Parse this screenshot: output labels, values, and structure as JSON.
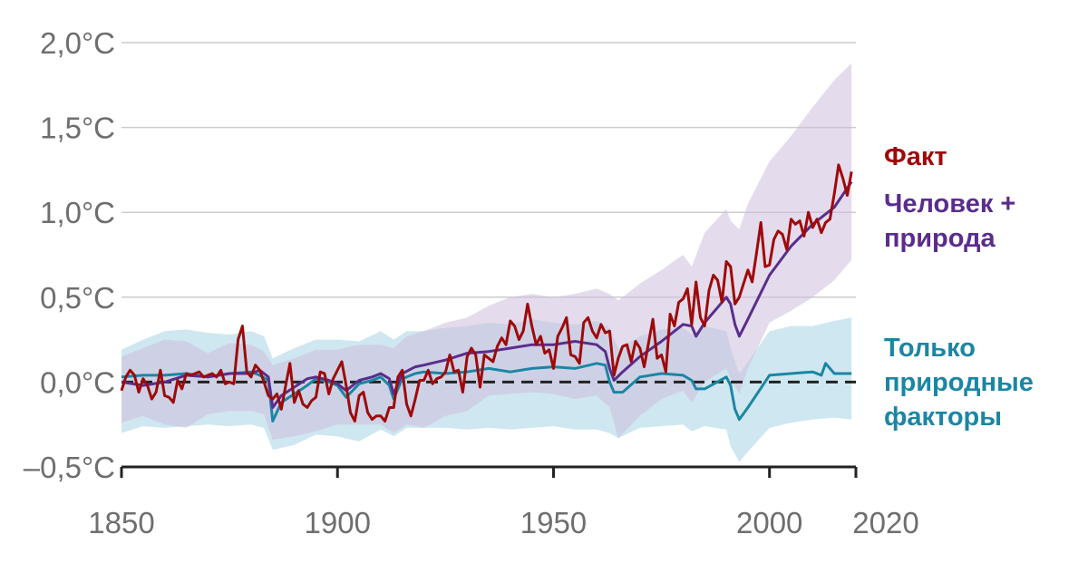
{
  "chart_data": {
    "type": "line",
    "xlim": [
      1850,
      2020
    ],
    "ylim": [
      -0.5,
      2.0
    ],
    "y_ticks": [
      {
        "value": 2.0,
        "label": "2,0°C"
      },
      {
        "value": 1.5,
        "label": "1,5°C"
      },
      {
        "value": 1.0,
        "label": "1,0°C"
      },
      {
        "value": 0.5,
        "label": "0,5°C"
      },
      {
        "value": 0.0,
        "label": "0,0°C"
      },
      {
        "value": -0.5,
        "label": "–0,5°C"
      }
    ],
    "x_ticks": [
      {
        "value": 1850,
        "label": "1850"
      },
      {
        "value": 1900,
        "label": "1900"
      },
      {
        "value": 1950,
        "label": "1950"
      },
      {
        "value": 2000,
        "label": "2000"
      },
      {
        "value": 2020,
        "label": "2020"
      }
    ],
    "grid": true,
    "zero_line": "dashed",
    "legend": [
      {
        "key": "observed",
        "lines": [
          "Факт"
        ],
        "color": "#9e0a0a"
      },
      {
        "key": "human_natural",
        "lines": [
          "Человек +",
          "природа"
        ],
        "color": "#5a2d8c"
      },
      {
        "key": "natural_only",
        "lines": [
          "Только",
          "природные",
          "факторы"
        ],
        "color": "#1b86a4"
      }
    ],
    "bands": [
      {
        "key": "natural_only",
        "color": "#a8d4e3",
        "x": [
          1850,
          1855,
          1860,
          1865,
          1870,
          1875,
          1880,
          1883,
          1885,
          1890,
          1895,
          1900,
          1905,
          1910,
          1913,
          1916,
          1920,
          1925,
          1930,
          1935,
          1940,
          1945,
          1950,
          1955,
          1960,
          1963,
          1965,
          1970,
          1975,
          1980,
          1982,
          1985,
          1990,
          1991,
          1993,
          1995,
          2000,
          2005,
          2010,
          2015,
          2019
        ],
        "lower": [
          -0.3,
          -0.26,
          -0.27,
          -0.26,
          -0.25,
          -0.26,
          -0.25,
          -0.27,
          -0.4,
          -0.37,
          -0.31,
          -0.32,
          -0.35,
          -0.28,
          -0.32,
          -0.27,
          -0.27,
          -0.27,
          -0.28,
          -0.27,
          -0.28,
          -0.27,
          -0.26,
          -0.28,
          -0.28,
          -0.3,
          -0.33,
          -0.27,
          -0.26,
          -0.25,
          -0.29,
          -0.26,
          -0.28,
          -0.38,
          -0.47,
          -0.41,
          -0.27,
          -0.24,
          -0.22,
          -0.21,
          -0.22
        ],
        "upper": [
          0.19,
          0.25,
          0.3,
          0.31,
          0.29,
          0.28,
          0.3,
          0.27,
          0.14,
          0.2,
          0.25,
          0.25,
          0.24,
          0.3,
          0.25,
          0.3,
          0.3,
          0.32,
          0.33,
          0.35,
          0.34,
          0.37,
          0.35,
          0.34,
          0.36,
          0.32,
          0.2,
          0.27,
          0.31,
          0.32,
          0.28,
          0.33,
          0.3,
          0.2,
          0.05,
          0.12,
          0.3,
          0.33,
          0.33,
          0.36,
          0.38
        ]
      },
      {
        "key": "human_natural",
        "color": "#cdbfdc",
        "x": [
          1850,
          1855,
          1860,
          1865,
          1870,
          1875,
          1880,
          1883,
          1885,
          1890,
          1895,
          1900,
          1905,
          1910,
          1913,
          1916,
          1920,
          1925,
          1930,
          1935,
          1940,
          1945,
          1950,
          1955,
          1960,
          1963,
          1965,
          1970,
          1975,
          1980,
          1982,
          1985,
          1990,
          1991,
          1993,
          1995,
          2000,
          2005,
          2010,
          2015,
          2019
        ],
        "lower": [
          -0.24,
          -0.2,
          -0.25,
          -0.27,
          -0.19,
          -0.17,
          -0.17,
          -0.19,
          -0.34,
          -0.32,
          -0.29,
          -0.25,
          -0.25,
          -0.25,
          -0.3,
          -0.25,
          -0.27,
          -0.2,
          -0.17,
          -0.08,
          -0.07,
          -0.06,
          -0.07,
          -0.1,
          -0.08,
          -0.15,
          -0.33,
          -0.2,
          -0.1,
          -0.05,
          -0.12,
          0.0,
          0.08,
          0.02,
          -0.07,
          0.08,
          0.35,
          0.42,
          0.5,
          0.6,
          0.72
        ],
        "upper": [
          0.15,
          0.2,
          0.25,
          0.24,
          0.17,
          0.23,
          0.22,
          0.18,
          0.1,
          0.14,
          0.19,
          0.19,
          0.22,
          0.22,
          0.2,
          0.27,
          0.3,
          0.35,
          0.38,
          0.45,
          0.5,
          0.52,
          0.5,
          0.52,
          0.55,
          0.52,
          0.48,
          0.58,
          0.66,
          0.75,
          0.68,
          0.88,
          1.02,
          0.95,
          0.9,
          1.05,
          1.3,
          1.45,
          1.62,
          1.78,
          1.88
        ]
      }
    ],
    "series": [
      {
        "key": "natural_only",
        "color": "#1b86a4",
        "x": [
          1850,
          1855,
          1860,
          1865,
          1870,
          1875,
          1880,
          1882,
          1884,
          1885,
          1887,
          1890,
          1893,
          1895,
          1898,
          1900,
          1902,
          1905,
          1908,
          1910,
          1912,
          1913,
          1915,
          1918,
          1920,
          1925,
          1930,
          1935,
          1940,
          1945,
          1950,
          1955,
          1960,
          1962,
          1963,
          1964,
          1966,
          1970,
          1975,
          1980,
          1982,
          1983,
          1985,
          1990,
          1991,
          1992,
          1993,
          1995,
          2000,
          2005,
          2010,
          2012,
          2013,
          2015,
          2019
        ],
        "values": [
          0.03,
          0.04,
          0.04,
          0.05,
          0.03,
          0.05,
          0.06,
          0.04,
          0.01,
          -0.23,
          -0.12,
          -0.07,
          -0.02,
          0.02,
          0.0,
          -0.02,
          -0.09,
          -0.01,
          0.01,
          0.03,
          -0.02,
          -0.1,
          0.02,
          0.05,
          0.06,
          0.05,
          0.06,
          0.08,
          0.06,
          0.08,
          0.09,
          0.08,
          0.11,
          0.1,
          0.0,
          -0.06,
          -0.06,
          0.03,
          0.05,
          0.04,
          0.01,
          -0.04,
          -0.04,
          0.03,
          -0.02,
          -0.16,
          -0.22,
          -0.15,
          0.04,
          0.05,
          0.06,
          0.04,
          0.11,
          0.05,
          0.05
        ]
      },
      {
        "key": "human_natural",
        "color": "#5a2d8c",
        "x": [
          1850,
          1855,
          1860,
          1865,
          1870,
          1875,
          1880,
          1882,
          1884,
          1885,
          1887,
          1890,
          1893,
          1895,
          1898,
          1900,
          1902,
          1905,
          1908,
          1910,
          1912,
          1913,
          1915,
          1918,
          1920,
          1925,
          1930,
          1935,
          1940,
          1945,
          1950,
          1955,
          1960,
          1962,
          1963,
          1964,
          1966,
          1970,
          1975,
          1980,
          1982,
          1983,
          1985,
          1990,
          1991,
          1992,
          1993,
          1995,
          2000,
          2005,
          2010,
          2015,
          2019
        ],
        "values": [
          0.0,
          -0.02,
          0.0,
          0.04,
          0.03,
          0.05,
          0.05,
          0.07,
          0.03,
          -0.15,
          -0.08,
          -0.03,
          0.02,
          0.03,
          0.01,
          -0.01,
          -0.05,
          0.01,
          0.03,
          0.05,
          0.02,
          -0.07,
          0.05,
          0.09,
          0.1,
          0.13,
          0.17,
          0.18,
          0.2,
          0.22,
          0.22,
          0.24,
          0.22,
          0.18,
          0.08,
          0.01,
          0.06,
          0.15,
          0.24,
          0.34,
          0.33,
          0.27,
          0.35,
          0.5,
          0.46,
          0.34,
          0.27,
          0.37,
          0.63,
          0.8,
          0.93,
          1.03,
          1.18
        ]
      },
      {
        "key": "observed",
        "color": "#9e0a0a",
        "x": [
          1850,
          1851,
          1852,
          1853,
          1854,
          1855,
          1856,
          1857,
          1858,
          1859,
          1860,
          1861,
          1862,
          1863,
          1864,
          1865,
          1866,
          1867,
          1868,
          1869,
          1870,
          1871,
          1872,
          1873,
          1874,
          1875,
          1876,
          1877,
          1878,
          1879,
          1880,
          1881,
          1882,
          1883,
          1884,
          1885,
          1886,
          1887,
          1888,
          1889,
          1890,
          1891,
          1892,
          1893,
          1894,
          1895,
          1896,
          1897,
          1898,
          1899,
          1900,
          1901,
          1902,
          1903,
          1904,
          1905,
          1906,
          1907,
          1908,
          1909,
          1910,
          1911,
          1912,
          1913,
          1914,
          1915,
          1916,
          1917,
          1918,
          1919,
          1920,
          1921,
          1922,
          1923,
          1924,
          1925,
          1926,
          1927,
          1928,
          1929,
          1930,
          1931,
          1932,
          1933,
          1934,
          1935,
          1936,
          1937,
          1938,
          1939,
          1940,
          1941,
          1942,
          1943,
          1944,
          1945,
          1946,
          1947,
          1948,
          1949,
          1950,
          1951,
          1952,
          1953,
          1954,
          1955,
          1956,
          1957,
          1958,
          1959,
          1960,
          1961,
          1962,
          1963,
          1964,
          1965,
          1966,
          1967,
          1968,
          1969,
          1970,
          1971,
          1972,
          1973,
          1974,
          1975,
          1976,
          1977,
          1978,
          1979,
          1980,
          1981,
          1982,
          1983,
          1984,
          1985,
          1986,
          1987,
          1988,
          1989,
          1990,
          1991,
          1992,
          1993,
          1994,
          1995,
          1996,
          1997,
          1998,
          1999,
          2000,
          2001,
          2002,
          2003,
          2004,
          2005,
          2006,
          2007,
          2008,
          2009,
          2010,
          2011,
          2012,
          2013,
          2014,
          2015,
          2016,
          2017,
          2018,
          2019
        ],
        "values": [
          -0.05,
          0.03,
          0.07,
          0.04,
          -0.06,
          0.02,
          -0.02,
          -0.1,
          -0.06,
          0.07,
          -0.08,
          -0.09,
          -0.12,
          0.01,
          -0.04,
          0.05,
          0.04,
          0.05,
          0.06,
          0.03,
          0.04,
          0.05,
          0.03,
          0.07,
          -0.01,
          0.0,
          -0.01,
          0.25,
          0.33,
          0.06,
          0.03,
          0.1,
          0.07,
          0.0,
          -0.08,
          -0.1,
          -0.07,
          -0.16,
          -0.02,
          0.11,
          -0.12,
          -0.05,
          -0.13,
          -0.15,
          -0.11,
          -0.09,
          0.06,
          0.05,
          -0.07,
          0.02,
          0.07,
          0.12,
          -0.02,
          -0.18,
          -0.23,
          -0.08,
          -0.06,
          -0.18,
          -0.22,
          -0.2,
          -0.2,
          -0.23,
          -0.15,
          -0.15,
          0.03,
          0.07,
          -0.13,
          -0.2,
          -0.1,
          0.01,
          0.01,
          0.07,
          -0.01,
          0.02,
          0.03,
          0.06,
          0.16,
          0.06,
          0.07,
          -0.06,
          0.15,
          0.2,
          0.16,
          -0.03,
          0.16,
          0.14,
          0.12,
          0.21,
          0.26,
          0.22,
          0.36,
          0.33,
          0.25,
          0.3,
          0.46,
          0.33,
          0.22,
          0.27,
          0.17,
          0.19,
          0.08,
          0.27,
          0.32,
          0.38,
          0.16,
          0.15,
          0.11,
          0.35,
          0.38,
          0.3,
          0.26,
          0.34,
          0.29,
          0.3,
          0.04,
          0.14,
          0.21,
          0.22,
          0.12,
          0.24,
          0.2,
          0.09,
          0.23,
          0.37,
          0.14,
          0.16,
          0.06,
          0.4,
          0.33,
          0.47,
          0.49,
          0.55,
          0.34,
          0.59,
          0.38,
          0.33,
          0.54,
          0.63,
          0.6,
          0.47,
          0.71,
          0.68,
          0.46,
          0.5,
          0.58,
          0.66,
          0.59,
          0.76,
          0.94,
          0.68,
          0.69,
          0.84,
          0.89,
          0.87,
          0.78,
          0.96,
          0.93,
          0.95,
          0.86,
          1.0,
          0.91,
          0.96,
          0.88,
          0.94,
          0.96,
          1.11,
          1.28,
          1.2,
          1.1,
          1.24
        ]
      }
    ]
  }
}
